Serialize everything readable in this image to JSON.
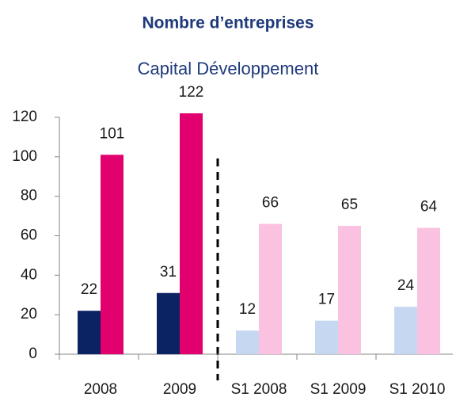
{
  "chart_data": {
    "type": "bar",
    "title": "Nombre d’entreprises",
    "subtitle": "Capital Développement",
    "categories": [
      "2008",
      "2009",
      "S1 2008",
      "S1 2009",
      "S1 2010"
    ],
    "series": [
      {
        "values": [
          22,
          31,
          12,
          17,
          24
        ],
        "colors": [
          "#0b2263",
          "#0b2263",
          "#c6d8f1",
          "#c6d8f1",
          "#c6d8f1"
        ]
      },
      {
        "values": [
          101,
          122,
          66,
          65,
          64
        ],
        "colors": [
          "#e2006f",
          "#e2006f",
          "#fbc1e0",
          "#fbc1e0",
          "#fbc1e0"
        ]
      }
    ],
    "ylim": [
      0,
      120
    ],
    "yticks": [
      0,
      20,
      40,
      60,
      80,
      100,
      120
    ],
    "grid": false
  }
}
